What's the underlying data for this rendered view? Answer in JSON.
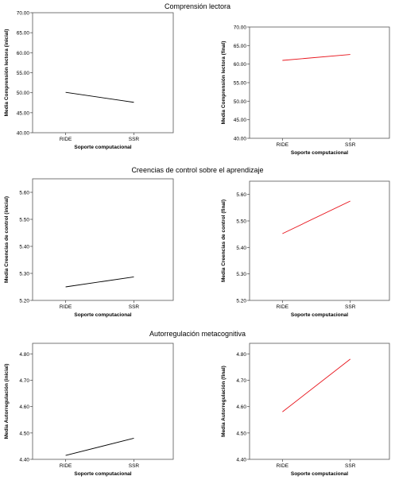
{
  "sections": [
    {
      "title": "Comprensión lectora"
    },
    {
      "title": "Creencias de control sobre el aprendizaje"
    },
    {
      "title": "Autorregulación metacognitiva"
    }
  ],
  "colors": {
    "inicial": "#000000",
    "final": "#e8141c",
    "frame": "#555555"
  },
  "chart_data": [
    {
      "type": "line",
      "categories": [
        "RIDE",
        "SSR"
      ],
      "values": [
        50.1,
        47.6
      ],
      "ylabel": "Media Comprensión lectora (inicial)",
      "xlabel": "Soporte computacional",
      "ylim": [
        40,
        70
      ],
      "yticks": [
        "40.00",
        "45.00",
        "50.00",
        "55.00",
        "60.00",
        "65.00",
        "70.00"
      ],
      "ytick_values": [
        40,
        45,
        50,
        55,
        60,
        65,
        70
      ],
      "color": "#000000"
    },
    {
      "type": "line",
      "categories": [
        "RIDE",
        "SSR"
      ],
      "values": [
        61.0,
        62.6
      ],
      "ylabel": "Media Comprensión lectora (final)",
      "xlabel": "Soporte computacional",
      "ylim": [
        40,
        70
      ],
      "yticks": [
        "40.00",
        "45.00",
        "50.00",
        "55.00",
        "60.00",
        "65.00",
        "70.00"
      ],
      "ytick_values": [
        40,
        45,
        50,
        55,
        60,
        65,
        70
      ],
      "color": "#e8141c"
    },
    {
      "type": "line",
      "categories": [
        "RIDE",
        "SSR"
      ],
      "values": [
        5.25,
        5.287
      ],
      "ylabel": "Media Creencias de control (inicial)",
      "xlabel": "Soporte computacional",
      "ylim": [
        5.2,
        5.65
      ],
      "yticks": [
        "5.20",
        "5.30",
        "5.40",
        "5.50",
        "5.60"
      ],
      "ytick_values": [
        5.2,
        5.3,
        5.4,
        5.5,
        5.6
      ],
      "color": "#000000"
    },
    {
      "type": "line",
      "categories": [
        "RIDE",
        "SSR"
      ],
      "values": [
        5.452,
        5.575
      ],
      "ylabel": "Media Creencias de control (final)",
      "xlabel": "Soporte computacional",
      "ylim": [
        5.2,
        5.65
      ],
      "yticks": [
        "5.20",
        "5.30",
        "5.40",
        "5.50",
        "5.60"
      ],
      "ytick_values": [
        5.2,
        5.3,
        5.4,
        5.5,
        5.6
      ],
      "color": "#e8141c"
    },
    {
      "type": "line",
      "categories": [
        "RIDE",
        "SSR"
      ],
      "values": [
        4.415,
        4.48
      ],
      "ylabel": "Media Autorregulación (inicial)",
      "xlabel": "Soporte computacional",
      "ylim": [
        4.4,
        4.84
      ],
      "yticks": [
        "4.40",
        "4.50",
        "4.60",
        "4.70",
        "4.80"
      ],
      "ytick_values": [
        4.4,
        4.5,
        4.6,
        4.7,
        4.8
      ],
      "color": "#000000"
    },
    {
      "type": "line",
      "categories": [
        "RIDE",
        "SSR"
      ],
      "values": [
        4.58,
        4.78
      ],
      "ylabel": "Media Autorregulación (final)",
      "xlabel": "Soporte computacional",
      "ylim": [
        4.4,
        4.84
      ],
      "yticks": [
        "4.40",
        "4.50",
        "4.60",
        "4.70",
        "4.80"
      ],
      "ytick_values": [
        4.4,
        4.5,
        4.6,
        4.7,
        4.8
      ],
      "color": "#e8141c"
    }
  ]
}
